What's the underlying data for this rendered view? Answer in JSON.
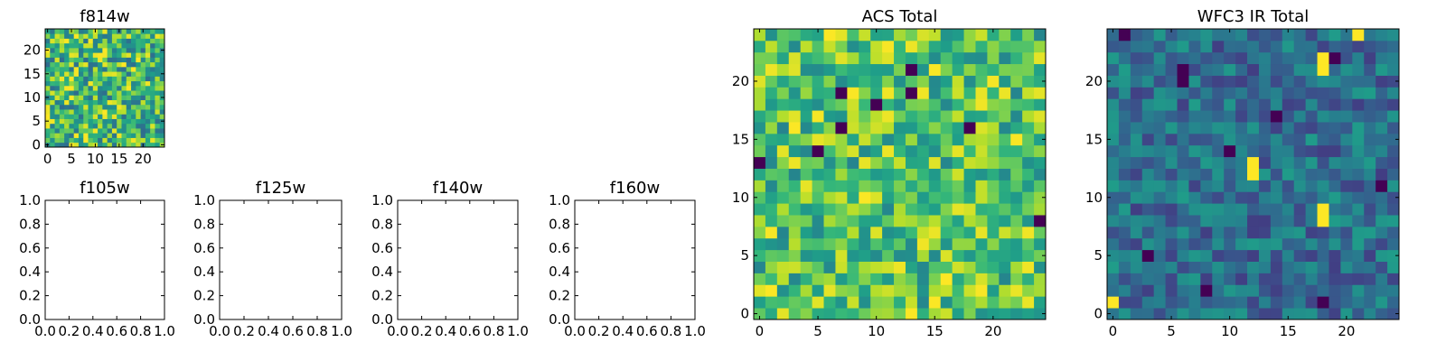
{
  "chart_data": [
    {
      "id": "f814w",
      "type": "heatmap",
      "title": "f814w",
      "grid_size": 25,
      "seed": 814,
      "colormap": "viridis",
      "value_range": [
        0.35,
        1.0
      ],
      "xlim": [
        -0.5,
        24.5
      ],
      "ylim": [
        -0.5,
        24.5
      ],
      "xticks": [
        0,
        5,
        10,
        15,
        20
      ],
      "yticks": [
        0,
        5,
        10,
        15,
        20
      ],
      "xtick_labels": [
        "0",
        "5",
        "10",
        "15",
        "20"
      ],
      "ytick_labels": [
        "0",
        "5",
        "10",
        "15",
        "20"
      ]
    },
    {
      "id": "f105w",
      "type": "empty",
      "title": "f105w",
      "xlim": [
        0,
        1
      ],
      "ylim": [
        0,
        1
      ],
      "xticks": [
        0,
        0.2,
        0.4,
        0.6,
        0.8,
        1.0
      ],
      "yticks": [
        0,
        0.2,
        0.4,
        0.6,
        0.8,
        1.0
      ],
      "xtick_labels": [
        "0.0",
        "0.2",
        "0.4",
        "0.6",
        "0.8",
        "1.0"
      ],
      "ytick_labels": [
        "0.0",
        "0.2",
        "0.4",
        "0.6",
        "0.8",
        "1.0"
      ]
    },
    {
      "id": "f125w",
      "type": "empty",
      "title": "f125w",
      "xlim": [
        0,
        1
      ],
      "ylim": [
        0,
        1
      ],
      "xticks": [
        0,
        0.2,
        0.4,
        0.6,
        0.8,
        1.0
      ],
      "yticks": [
        0,
        0.2,
        0.4,
        0.6,
        0.8,
        1.0
      ],
      "xtick_labels": [
        "0.0",
        "0.2",
        "0.4",
        "0.6",
        "0.8",
        "1.0"
      ],
      "ytick_labels": [
        "0.0",
        "0.2",
        "0.4",
        "0.6",
        "0.8",
        "1.0"
      ]
    },
    {
      "id": "f140w",
      "type": "empty",
      "title": "f140w",
      "xlim": [
        0,
        1
      ],
      "ylim": [
        0,
        1
      ],
      "xticks": [
        0,
        0.2,
        0.4,
        0.6,
        0.8,
        1.0
      ],
      "yticks": [
        0,
        0.2,
        0.4,
        0.6,
        0.8,
        1.0
      ],
      "xtick_labels": [
        "0.0",
        "0.2",
        "0.4",
        "0.6",
        "0.8",
        "1.0"
      ],
      "ytick_labels": [
        "0.0",
        "0.2",
        "0.4",
        "0.6",
        "0.8",
        "1.0"
      ]
    },
    {
      "id": "f160w",
      "type": "empty",
      "title": "f160w",
      "xlim": [
        0,
        1
      ],
      "ylim": [
        0,
        1
      ],
      "xticks": [
        0,
        0.2,
        0.4,
        0.6,
        0.8,
        1.0
      ],
      "yticks": [
        0,
        0.2,
        0.4,
        0.6,
        0.8,
        1.0
      ],
      "xtick_labels": [
        "0.0",
        "0.2",
        "0.4",
        "0.6",
        "0.8",
        "1.0"
      ],
      "ytick_labels": [
        "0.0",
        "0.2",
        "0.4",
        "0.6",
        "0.8",
        "1.0"
      ]
    },
    {
      "id": "acs_total",
      "type": "heatmap",
      "title": "ACS Total",
      "grid_size": 25,
      "seed": 4242,
      "colormap": "viridis",
      "value_range": [
        0.45,
        1.0
      ],
      "dark_cells": [
        [
          13,
          21
        ],
        [
          7,
          19
        ],
        [
          13,
          19
        ],
        [
          10,
          18
        ],
        [
          7,
          16
        ],
        [
          18,
          16
        ],
        [
          5,
          14
        ],
        [
          0,
          13
        ],
        [
          24,
          8
        ]
      ],
      "xlim": [
        -0.5,
        24.5
      ],
      "ylim": [
        -0.5,
        24.5
      ],
      "xticks": [
        0,
        5,
        10,
        15,
        20
      ],
      "yticks": [
        0,
        5,
        10,
        15,
        20
      ],
      "xtick_labels": [
        "0",
        "5",
        "10",
        "15",
        "20"
      ],
      "ytick_labels": [
        "0",
        "5",
        "10",
        "15",
        "20"
      ]
    },
    {
      "id": "wfc3_ir_total",
      "type": "heatmap",
      "title": "WFC3 IR Total",
      "grid_size": 25,
      "seed": 3141,
      "colormap": "viridis",
      "value_range": [
        0.18,
        0.55
      ],
      "bright_cells": [
        [
          21,
          24
        ],
        [
          18,
          22
        ],
        [
          18,
          21
        ],
        [
          12,
          13
        ],
        [
          12,
          12
        ],
        [
          18,
          9
        ],
        [
          18,
          8
        ],
        [
          0,
          1
        ]
      ],
      "dark_cells": [
        [
          1,
          24
        ],
        [
          19,
          22
        ],
        [
          6,
          21
        ],
        [
          6,
          20
        ],
        [
          14,
          17
        ],
        [
          10,
          14
        ],
        [
          23,
          11
        ],
        [
          3,
          5
        ],
        [
          8,
          2
        ],
        [
          18,
          1
        ]
      ],
      "xlim": [
        -0.5,
        24.5
      ],
      "ylim": [
        -0.5,
        24.5
      ],
      "xticks": [
        0,
        5,
        10,
        15,
        20
      ],
      "yticks": [
        0,
        5,
        10,
        15,
        20
      ],
      "xtick_labels": [
        "0",
        "5",
        "10",
        "15",
        "20"
      ],
      "ytick_labels": [
        "0",
        "5",
        "10",
        "15",
        "20"
      ]
    }
  ]
}
